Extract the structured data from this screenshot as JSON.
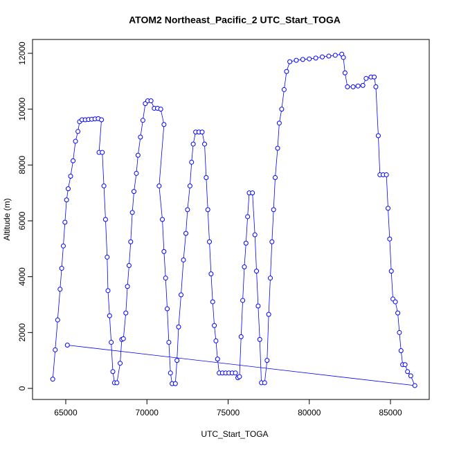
{
  "chart_data": {
    "type": "line",
    "marker": "open-circle",
    "title": "ATOM2 Northeast_Pacific_2 UTC_Start_TOGA",
    "x_label": "UTC_Start_TOGA",
    "y_label": "Altitude (m)",
    "color": "#0000ff",
    "x": [
      64200,
      64350,
      64500,
      64650,
      64750,
      64850,
      64950,
      65050,
      65150,
      65300,
      65450,
      65600,
      65750,
      65850,
      66000,
      66200,
      66400,
      66600,
      66800,
      67000,
      67200,
      67050,
      67250,
      67350,
      67450,
      67550,
      67600,
      67700,
      67800,
      67900,
      68000,
      68150,
      68350,
      68450,
      68550,
      68700,
      68800,
      68900,
      69000,
      69100,
      69200,
      69350,
      69450,
      69600,
      69750,
      69900,
      70050,
      70250,
      70450,
      70650,
      70850,
      71050,
      70750,
      70950,
      71050,
      71150,
      71250,
      71350,
      71450,
      71550,
      71750,
      71850,
      71950,
      72100,
      72250,
      72400,
      72500,
      72650,
      72750,
      72850,
      73000,
      73200,
      73400,
      73550,
      73650,
      73750,
      73850,
      73950,
      74050,
      74150,
      74250,
      74350,
      74450,
      74650,
      74850,
      75050,
      75250,
      75450,
      75600,
      75700,
      75800,
      75900,
      76000,
      76100,
      76200,
      76300,
      76500,
      76650,
      76750,
      76850,
      76950,
      77050,
      77250,
      77400,
      77500,
      77600,
      77700,
      77800,
      77900,
      78050,
      78150,
      78300,
      78450,
      78600,
      78800,
      79200,
      79600,
      80000,
      80400,
      80800,
      81200,
      81600,
      82000,
      82100,
      82200,
      82350,
      82700,
      83000,
      83300,
      83500,
      83800,
      84000,
      84100,
      84250,
      84350,
      84550,
      84750,
      84850,
      84950,
      85050,
      85150,
      85300,
      85450,
      85550,
      85650,
      85750,
      85900,
      86050,
      86250,
      86500,
      65100
    ],
    "values": [
      330,
      1380,
      2450,
      3550,
      4300,
      5100,
      5950,
      6750,
      7150,
      7600,
      8150,
      8850,
      9200,
      9550,
      9620,
      9620,
      9630,
      9640,
      9650,
      9660,
      9620,
      8450,
      8450,
      7250,
      6050,
      4700,
      3500,
      2600,
      1650,
      600,
      200,
      200,
      900,
      1750,
      1780,
      2700,
      3650,
      4400,
      5250,
      6300,
      7050,
      7700,
      8350,
      9000,
      9600,
      10200,
      10300,
      10300,
      10030,
      10030,
      10000,
      9450,
      7250,
      6050,
      4900,
      3950,
      2850,
      1650,
      550,
      170,
      170,
      1000,
      2200,
      3350,
      4600,
      5550,
      6400,
      7250,
      8100,
      8750,
      9180,
      9180,
      9180,
      8750,
      7550,
      6400,
      5250,
      4100,
      3100,
      2250,
      1700,
      1050,
      550,
      550,
      550,
      550,
      550,
      550,
      380,
      420,
      1850,
      3150,
      4350,
      5200,
      6150,
      7000,
      7000,
      5500,
      4200,
      2950,
      1750,
      200,
      200,
      1000,
      2650,
      3950,
      5250,
      6400,
      7550,
      8600,
      9500,
      10000,
      10700,
      11350,
      11700,
      11750,
      11780,
      11800,
      11830,
      11870,
      11900,
      11930,
      11970,
      11850,
      11300,
      10800,
      10800,
      10830,
      10850,
      11100,
      11150,
      11150,
      10800,
      9050,
      7650,
      7650,
      7650,
      6450,
      5350,
      4200,
      3200,
      3100,
      2700,
      2000,
      1350,
      850,
      850,
      600,
      450,
      100,
      1550
    ],
    "xlim": [
      62954,
      87387
    ],
    "ylim": [
      -397,
      12496
    ],
    "xticks": [
      65000,
      70000,
      75000,
      80000,
      85000
    ],
    "yticks": [
      0,
      2000,
      4000,
      6000,
      8000,
      10000,
      12000
    ]
  }
}
